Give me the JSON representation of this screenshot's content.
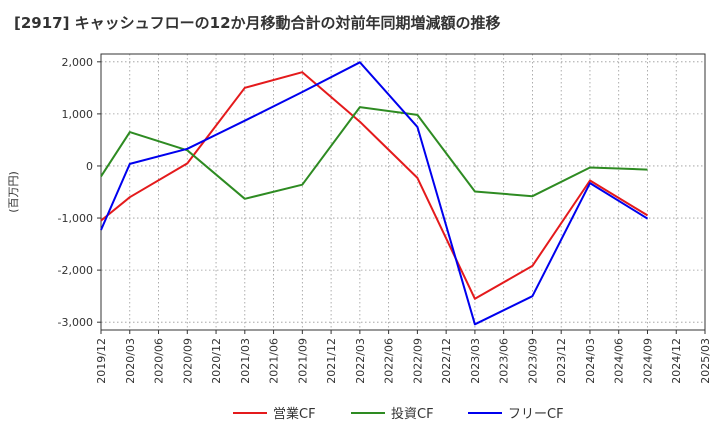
{
  "chart_data": {
    "type": "line",
    "title": "[2917]  キャッシュフローの12か月移動合計の対前年同期増減額の推移",
    "ylabel": "(百万円)",
    "xlabel": "",
    "x_ticks": [
      "2019/12",
      "2020/03",
      "2020/06",
      "2020/09",
      "2020/12",
      "2021/03",
      "2021/06",
      "2021/09",
      "2021/12",
      "2022/03",
      "2022/06",
      "2022/09",
      "2022/12",
      "2023/03",
      "2023/06",
      "2023/09",
      "2023/12",
      "2024/03",
      "2024/06",
      "2024/09",
      "2024/12",
      "2025/03"
    ],
    "y_ticks": [
      2000,
      1000,
      0,
      -1000,
      -2000,
      -3000
    ],
    "y_tick_labels": [
      "2,000",
      "1,000",
      "0",
      "-1,000",
      "-2,000",
      "-3,000"
    ],
    "ylim": [
      -3150,
      2150
    ],
    "grid": true,
    "legend_position": "bottom",
    "series": [
      {
        "name": "営業CF",
        "color": "#e41a1c",
        "x": [
          "2019/12",
          "2020/03",
          "2020/09",
          "2021/03",
          "2021/09",
          "2022/03",
          "2022/09",
          "2023/03",
          "2023/09",
          "2024/03",
          "2024/09"
        ],
        "values": [
          -1050,
          -600,
          50,
          1500,
          1800,
          850,
          -230,
          -2550,
          -1920,
          -280,
          -950
        ]
      },
      {
        "name": "投資CF",
        "color": "#2e8b22",
        "x": [
          "2019/12",
          "2020/03",
          "2020/09",
          "2021/03",
          "2021/09",
          "2022/03",
          "2022/09",
          "2023/03",
          "2023/09",
          "2024/03",
          "2024/09"
        ],
        "values": [
          -200,
          650,
          300,
          -630,
          -360,
          1130,
          980,
          -490,
          -580,
          -30,
          -70
        ]
      },
      {
        "name": "フリーCF",
        "color": "#0000ee",
        "x": [
          "2019/12",
          "2020/03",
          "2020/09",
          "2021/03",
          "2021/09",
          "2022/03",
          "2022/09",
          "2023/03",
          "2023/09",
          "2024/03",
          "2024/09"
        ],
        "values": [
          -1230,
          40,
          330,
          870,
          1420,
          1990,
          750,
          -3040,
          -2500,
          -330,
          -1010
        ]
      }
    ]
  }
}
